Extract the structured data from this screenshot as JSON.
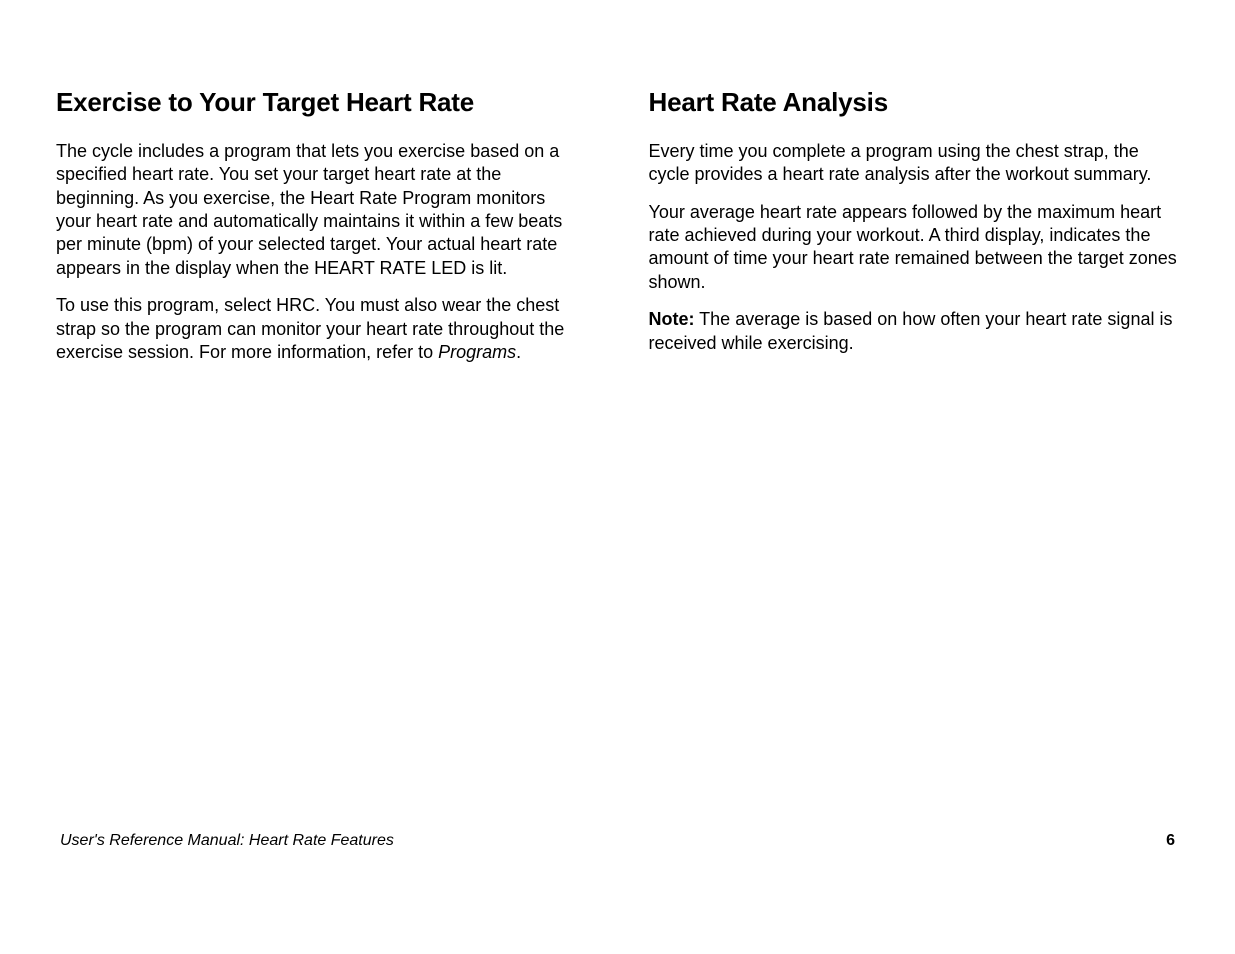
{
  "left": {
    "heading": "Exercise to Your Target Heart Rate",
    "p1_a": "The cycle includes a program that lets you exercise based on a specified heart rate. You set your target heart rate at the beginning. As you exercise, the Heart Rate Program monitors your heart rate and automatically maintains it within a few beats per minute (bpm) of your selected target. Your actual heart rate appears in the display when the HEART RATE LED is lit.",
    "p2_a": "To use this program, select HRC. You must also wear the chest strap so the program can monitor your heart rate throughout the exercise session. For more information, refer to ",
    "p2_em": "Programs",
    "p2_b": "."
  },
  "right": {
    "heading": "Heart Rate Analysis",
    "p1": "Every time you complete a program using the chest strap, the cycle provides a heart rate analysis after the workout summary.",
    "p2": "Your average heart rate appears followed by the maximum heart rate achieved during your workout. A third display, indicates the amount of time your heart rate remained between the target zones shown.",
    "p3_strong": "Note:",
    "p3_rest": " The average is based on how often your heart rate signal is received while exercising."
  },
  "footer": {
    "title": "User's Reference Manual: Heart Rate Features",
    "page": "6"
  }
}
